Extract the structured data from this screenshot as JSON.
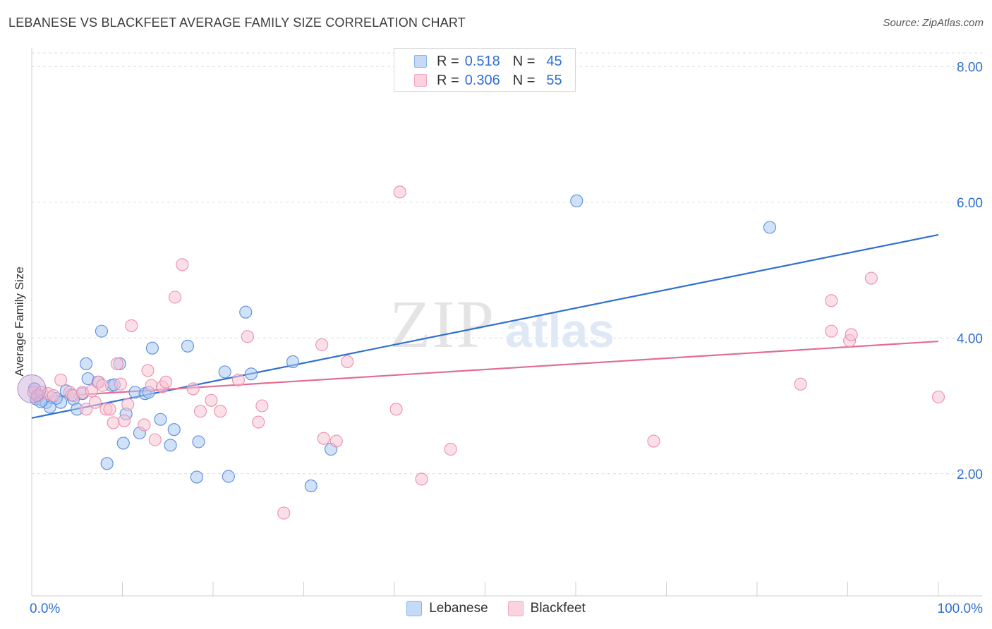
{
  "title": "LEBANESE VS BLACKFEET AVERAGE FAMILY SIZE CORRELATION CHART",
  "source": "Source: ZipAtlas.com",
  "watermark": {
    "zip": "ZIP",
    "atlas": "atlas"
  },
  "legend": {
    "rows": [
      {
        "r_label": "R =",
        "r_value": "0.518",
        "n_label": "N =",
        "n_value": "45",
        "color": "#8ab4ec"
      },
      {
        "r_label": "R =",
        "r_value": "0.306",
        "n_label": "N =",
        "n_value": "55",
        "color": "#f4a8c0"
      }
    ]
  },
  "bottom_legend": [
    {
      "label": "Lebanese",
      "color": "#8ab4ec"
    },
    {
      "label": "Blackfeet",
      "color": "#f4a8c0"
    }
  ],
  "chart_data": {
    "type": "scatter",
    "ylabel": "Average Family Size",
    "xlabel": "",
    "x_tick_labels": [
      "0.0%",
      "100.0%"
    ],
    "y_tick_labels": [
      "2.00",
      "4.00",
      "6.00",
      "8.00"
    ],
    "xlim": [
      0,
      100
    ],
    "ylim": [
      0.2,
      8.2
    ],
    "grid": true,
    "legend_position": "top-center",
    "series": [
      {
        "name": "Lebanese",
        "color": "#5b8fd9",
        "fill": "#aac9f2",
        "trend": {
          "x": [
            0,
            100
          ],
          "y": [
            2.82,
            5.52
          ],
          "color": "#2f6fd1"
        },
        "points": [
          [
            0.3,
            3.25
          ],
          [
            0.5,
            3.1
          ],
          [
            0.8,
            3.15
          ],
          [
            1.2,
            3.08
          ],
          [
            1.6,
            3.05
          ],
          [
            2.2,
            3.12
          ],
          [
            2.0,
            2.98
          ],
          [
            3.2,
            3.05
          ],
          [
            3.8,
            3.22
          ],
          [
            4.6,
            3.1
          ],
          [
            5.0,
            2.95
          ],
          [
            5.6,
            3.18
          ],
          [
            6.2,
            3.4
          ],
          [
            6.0,
            3.62
          ],
          [
            7.3,
            3.35
          ],
          [
            7.7,
            4.1
          ],
          [
            8.3,
            2.15
          ],
          [
            8.8,
            3.3
          ],
          [
            9.7,
            3.62
          ],
          [
            10.4,
            2.88
          ],
          [
            10.1,
            2.45
          ],
          [
            11.4,
            3.2
          ],
          [
            11.9,
            2.6
          ],
          [
            12.5,
            3.18
          ],
          [
            12.9,
            3.2
          ],
          [
            13.3,
            3.85
          ],
          [
            14.2,
            2.8
          ],
          [
            15.3,
            2.42
          ],
          [
            15.7,
            2.65
          ],
          [
            17.2,
            3.88
          ],
          [
            18.2,
            1.95
          ],
          [
            18.4,
            2.47
          ],
          [
            21.3,
            3.5
          ],
          [
            21.7,
            1.96
          ],
          [
            23.6,
            4.38
          ],
          [
            24.2,
            3.47
          ],
          [
            28.8,
            3.65
          ],
          [
            30.8,
            1.82
          ],
          [
            33.0,
            2.36
          ],
          [
            60.1,
            6.02
          ],
          [
            81.4,
            5.63
          ],
          [
            1.0,
            3.06
          ],
          [
            4.4,
            3.16
          ],
          [
            2.7,
            3.11
          ],
          [
            9.1,
            3.31
          ]
        ]
      },
      {
        "name": "Blackfeet",
        "color": "#ec8fae",
        "fill": "#f7c4d4",
        "trend": {
          "x": [
            0,
            100
          ],
          "y": [
            3.12,
            3.95
          ],
          "color": "#e26c94"
        },
        "points": [
          [
            0.2,
            3.2
          ],
          [
            0.6,
            3.15
          ],
          [
            1.1,
            3.2
          ],
          [
            1.8,
            3.18
          ],
          [
            2.4,
            3.15
          ],
          [
            3.2,
            3.38
          ],
          [
            4.2,
            3.2
          ],
          [
            4.6,
            3.15
          ],
          [
            5.6,
            3.2
          ],
          [
            6.0,
            2.95
          ],
          [
            6.6,
            3.22
          ],
          [
            7.0,
            3.05
          ],
          [
            7.4,
            3.35
          ],
          [
            7.8,
            3.3
          ],
          [
            8.2,
            2.95
          ],
          [
            8.6,
            2.95
          ],
          [
            9.0,
            2.75
          ],
          [
            9.4,
            3.62
          ],
          [
            9.8,
            3.32
          ],
          [
            10.2,
            2.78
          ],
          [
            10.6,
            3.02
          ],
          [
            11.0,
            4.18
          ],
          [
            12.4,
            2.72
          ],
          [
            12.8,
            3.52
          ],
          [
            13.2,
            3.3
          ],
          [
            13.6,
            2.5
          ],
          [
            14.4,
            3.28
          ],
          [
            14.8,
            3.35
          ],
          [
            15.8,
            4.6
          ],
          [
            16.6,
            5.08
          ],
          [
            17.8,
            3.25
          ],
          [
            18.6,
            2.92
          ],
          [
            19.8,
            3.08
          ],
          [
            20.8,
            2.92
          ],
          [
            22.8,
            3.38
          ],
          [
            23.8,
            4.02
          ],
          [
            25.0,
            2.76
          ],
          [
            25.4,
            3.0
          ],
          [
            27.8,
            1.42
          ],
          [
            32.0,
            3.9
          ],
          [
            32.2,
            2.52
          ],
          [
            33.6,
            2.48
          ],
          [
            34.8,
            3.65
          ],
          [
            40.2,
            2.95
          ],
          [
            40.6,
            6.15
          ],
          [
            43.0,
            1.92
          ],
          [
            46.2,
            2.36
          ],
          [
            68.6,
            2.48
          ],
          [
            84.8,
            3.32
          ],
          [
            88.2,
            4.1
          ],
          [
            90.2,
            3.96
          ],
          [
            88.2,
            4.55
          ],
          [
            90.4,
            4.05
          ],
          [
            92.6,
            4.88
          ],
          [
            100,
            3.13
          ]
        ]
      }
    ]
  }
}
